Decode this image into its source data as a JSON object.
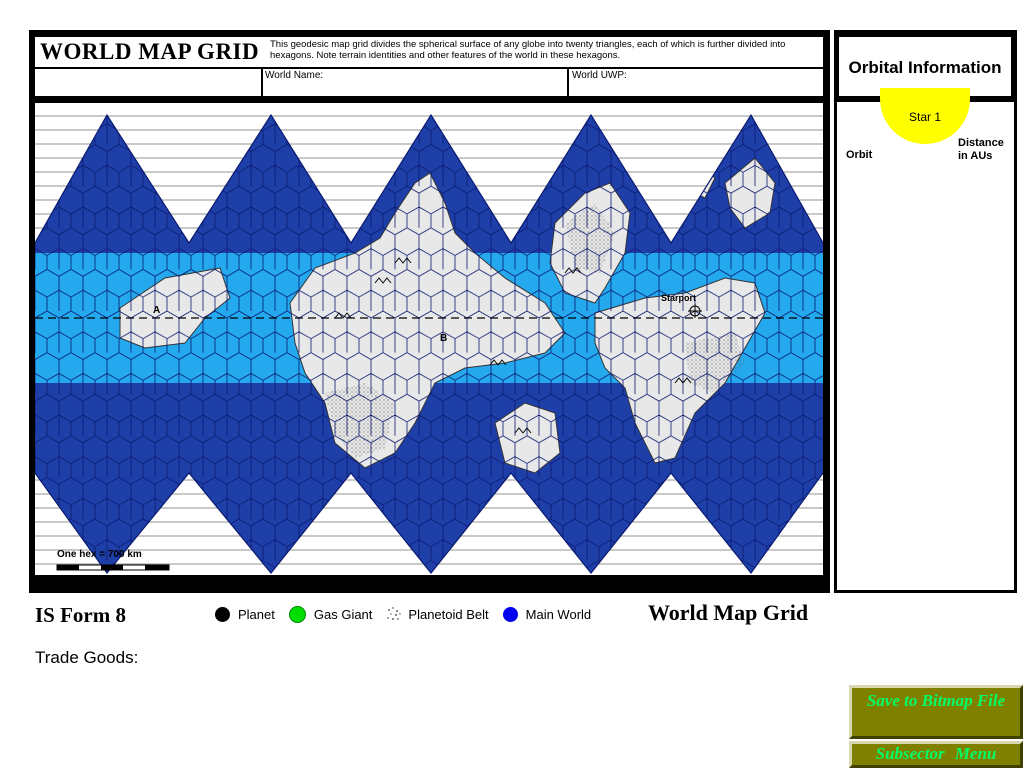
{
  "header": {
    "title": "WORLD MAP GRID",
    "description": "This geodesic map grid divides the spherical surface of any globe into twenty triangles, each of which is further divided into hexagons.  Note terrain identities and other features of the world in these hexagons.",
    "world_name_label": "World Name:",
    "world_uwp_label": "World UWP:"
  },
  "map": {
    "labels": {
      "site_a": "A",
      "site_b": "B",
      "starport": "Starport"
    },
    "scale_label": "One hex = 700 km",
    "colors": {
      "ocean_deep": "#1f3fa8",
      "ocean_shallow": "#24a8ee",
      "land": "#e8e8e8",
      "grid_lines": "#000000"
    }
  },
  "orbital": {
    "title": "Orbital Information",
    "star_label": "Star 1",
    "orbit_label": "Orbit",
    "distance_label": "Distance in AUs",
    "star_color": "#ffff00"
  },
  "footer": {
    "form_id": "IS Form 8",
    "form_name": "World Map Grid",
    "trade_goods_label": "Trade Goods:",
    "legend": [
      {
        "label": "Planet",
        "icon": "planet-icon",
        "color": "#000000"
      },
      {
        "label": "Gas Giant",
        "icon": "gas-giant-icon",
        "color": "#00dd00"
      },
      {
        "label": "Planetoid Belt",
        "icon": "planetoid-belt-icon",
        "color": "#888888"
      },
      {
        "label": "Main World",
        "icon": "main-world-icon",
        "color": "#0000ee"
      }
    ]
  },
  "buttons": {
    "save_label": "Save to Bitmap File",
    "subsector_label": "Subsector   Menu",
    "color": "#808000",
    "text_color": "#00ff66"
  }
}
